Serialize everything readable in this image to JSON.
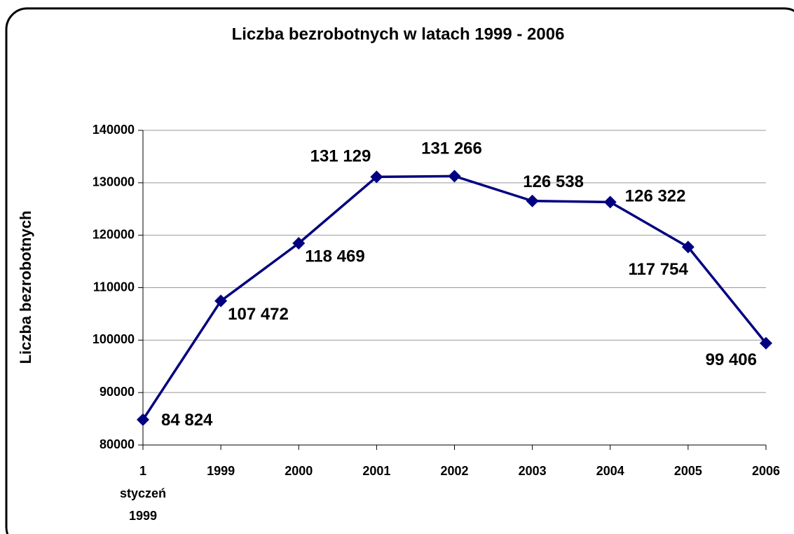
{
  "chart_data": {
    "type": "line",
    "title": "Liczba bezrobotnych w latach 1999 - 2006",
    "y_label": "Liczba bezrobotnych",
    "categories": [
      "1 styczeń 1999",
      "1999",
      "2000",
      "2001",
      "2002",
      "2003",
      "2004",
      "2005",
      "2006"
    ],
    "series": [
      {
        "name": "Liczba bezrobotnych",
        "color": "#000080",
        "values": [
          84824,
          107472,
          118469,
          131129,
          131266,
          126538,
          126322,
          117754,
          99406
        ],
        "value_labels": [
          "84 824",
          "107 472",
          "118 469",
          "131 129",
          "131 266",
          "126 538",
          "126 322",
          "117 754",
          "99 406"
        ]
      }
    ],
    "ylim": [
      80000,
      140000
    ],
    "yticks": [
      80000,
      90000,
      100000,
      110000,
      120000,
      130000,
      140000
    ],
    "grid": true
  }
}
